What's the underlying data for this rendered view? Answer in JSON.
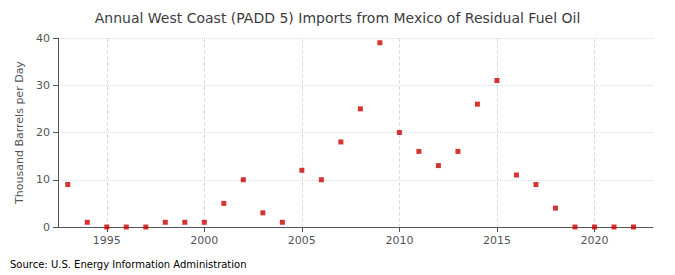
{
  "chart_data": {
    "type": "scatter",
    "title": "Annual West Coast (PADD 5) Imports from Mexico of Residual Fuel Oil",
    "ylabel": "Thousand Barrels per Day",
    "source": "Source: U.S. Energy Information Administration",
    "x": [
      1993,
      1994,
      1995,
      1996,
      1997,
      1998,
      1999,
      2000,
      2001,
      2002,
      2003,
      2004,
      2005,
      2006,
      2007,
      2008,
      2009,
      2010,
      2011,
      2012,
      2013,
      2014,
      2015,
      2016,
      2017,
      2018,
      2019,
      2020,
      2021,
      2022
    ],
    "values": [
      9,
      1,
      0,
      0,
      0,
      1,
      1,
      1,
      5,
      10,
      3,
      1,
      12,
      10,
      18,
      25,
      39,
      20,
      16,
      13,
      16,
      26,
      31,
      11,
      9,
      4,
      0,
      0,
      0,
      0
    ],
    "color": "#cc0000",
    "marker": "square",
    "xlim": [
      1992.5,
      2023
    ],
    "xticks": [
      1995,
      2000,
      2005,
      2010,
      2015,
      2020
    ],
    "ylim": [
      0,
      40
    ],
    "yticks": [
      0,
      10,
      20,
      30,
      40
    ],
    "grid": true
  }
}
